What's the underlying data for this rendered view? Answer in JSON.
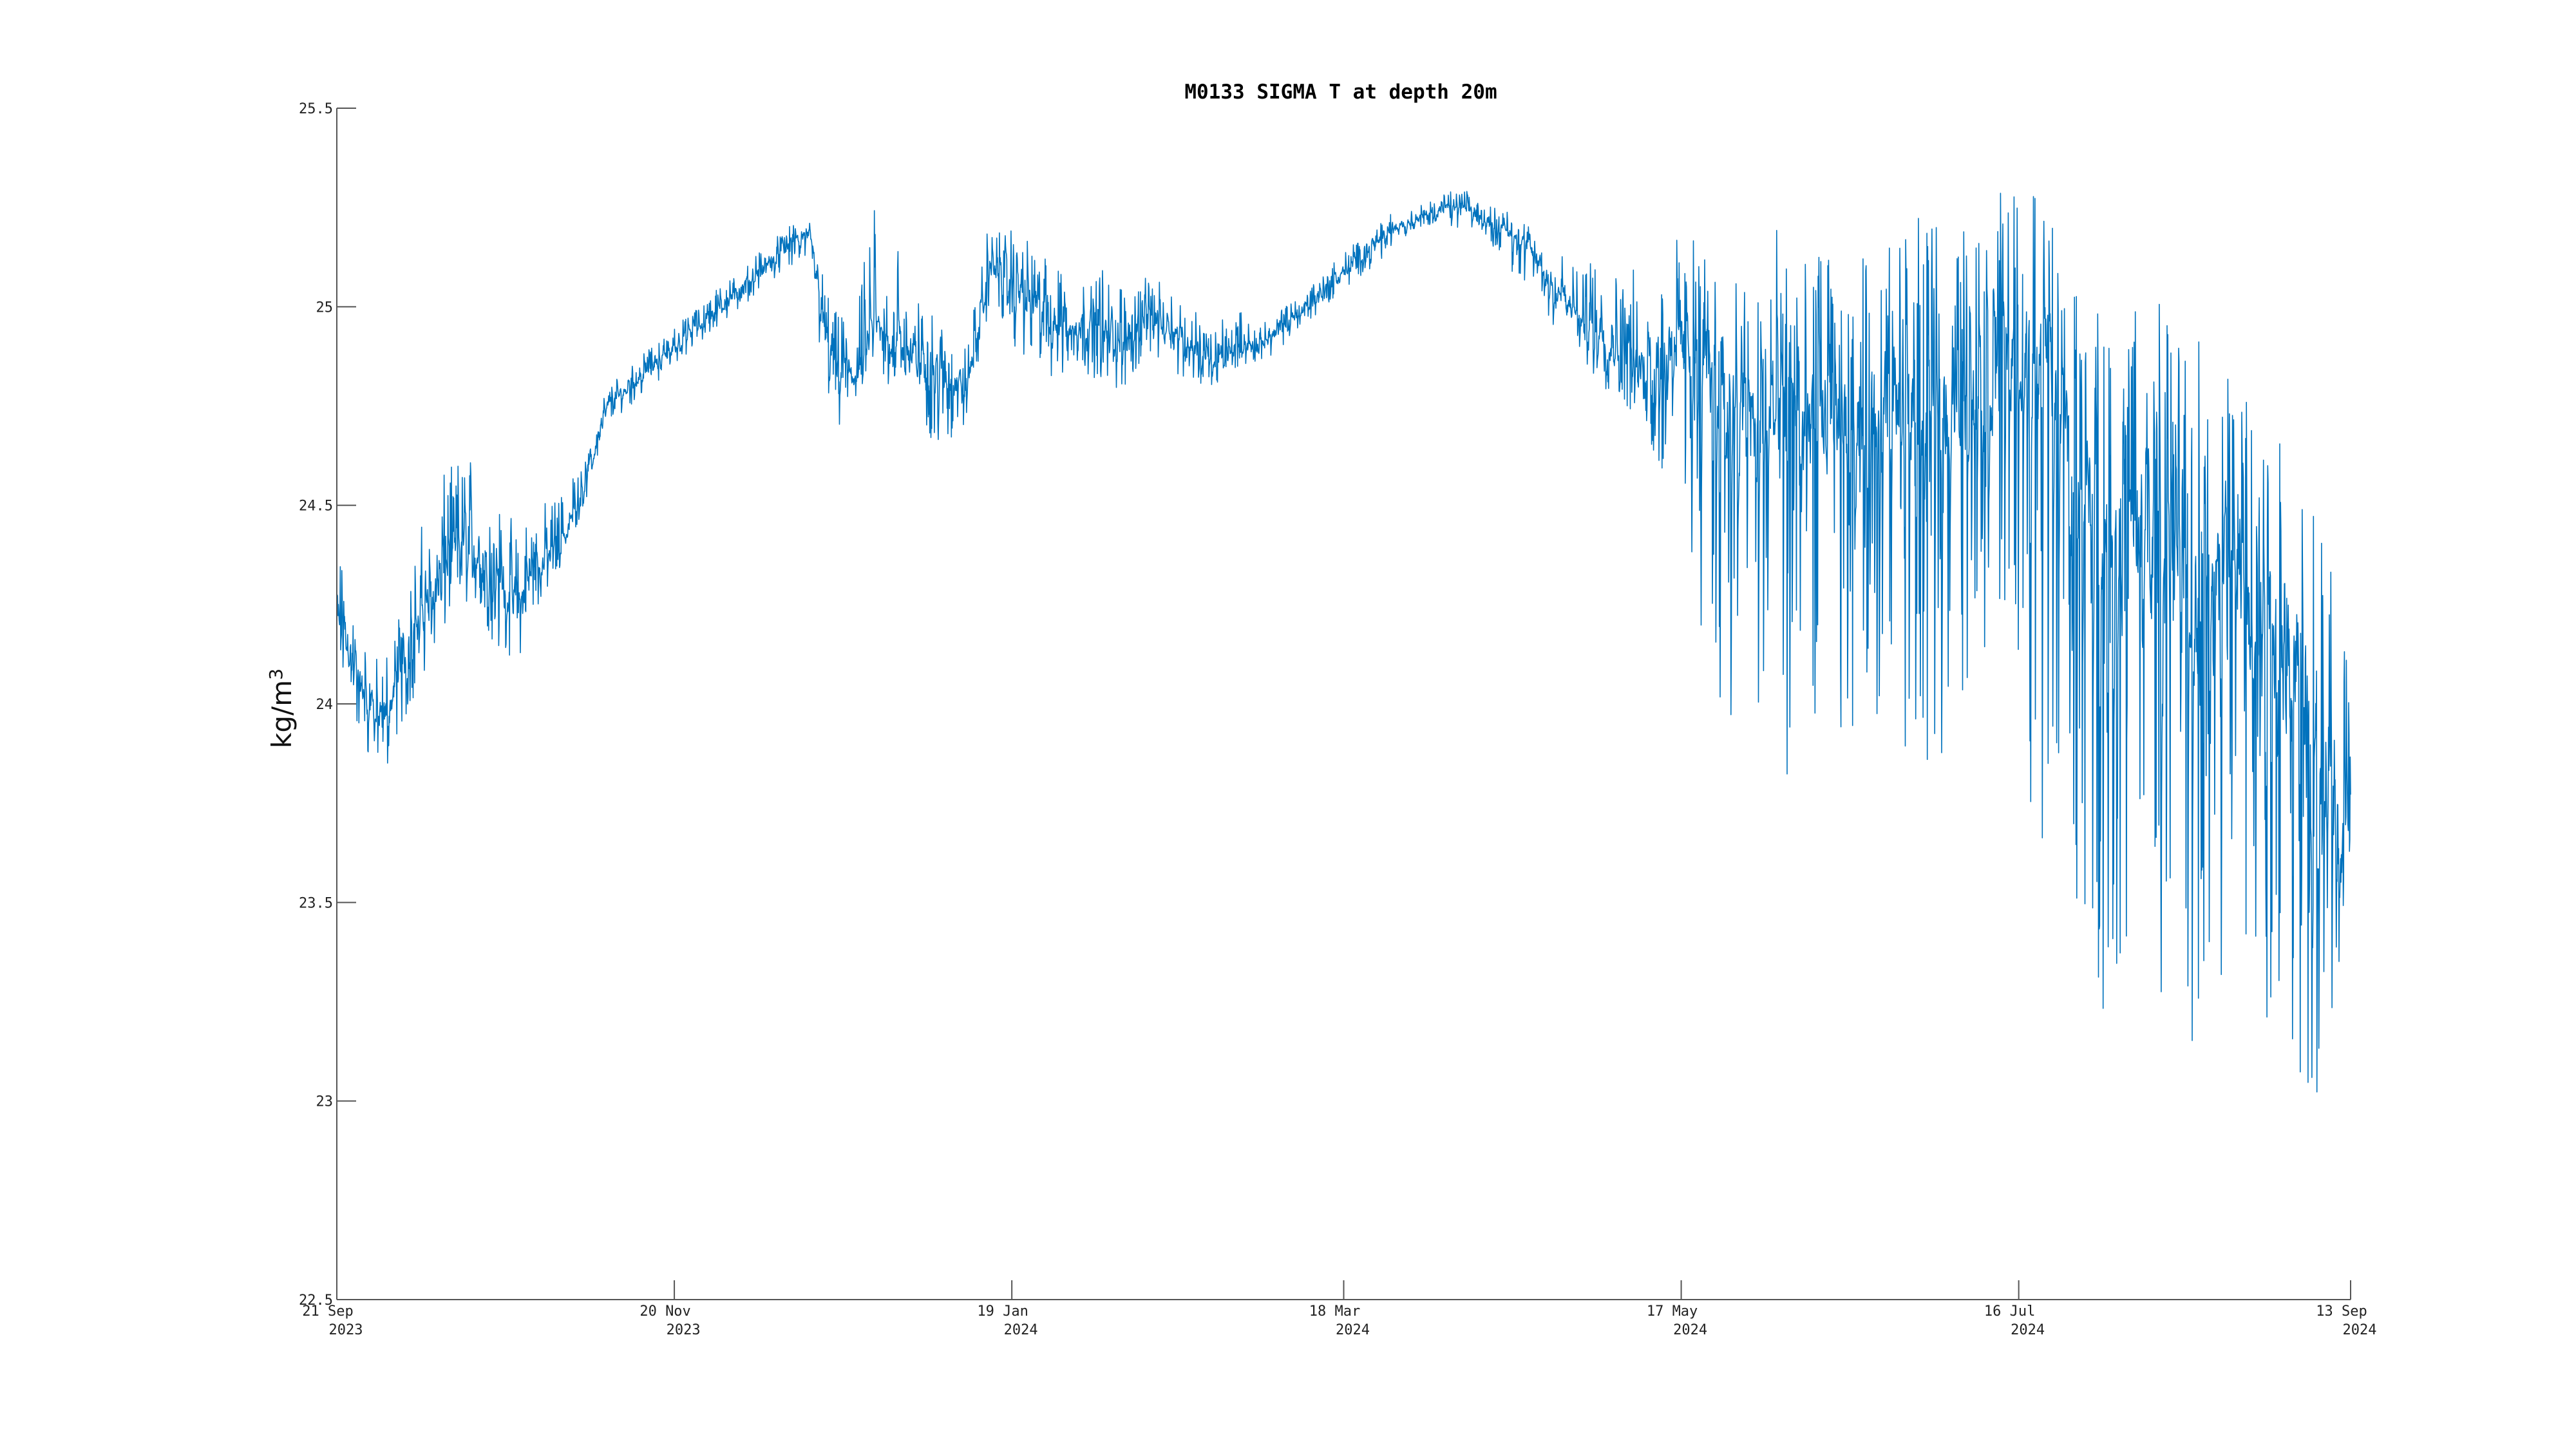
{
  "chart_data": {
    "type": "line",
    "title": "M0133 SIGMA T at depth 20m",
    "xlabel": "",
    "ylabel": "kg/m",
    "ylabel_sup": "3",
    "ylim": [
      22.5,
      25.5
    ],
    "xlim": [
      "2023-09-21",
      "2024-09-13"
    ],
    "grid": false,
    "color": "#0072bd",
    "yticks": [
      {
        "value": 22.5,
        "label": "22.5"
      },
      {
        "value": 23,
        "label": "23"
      },
      {
        "value": 23.5,
        "label": "23.5"
      },
      {
        "value": 24,
        "label": "24"
      },
      {
        "value": 24.5,
        "label": "24.5"
      },
      {
        "value": 25,
        "label": "25"
      },
      {
        "value": 25.5,
        "label": "25.5"
      }
    ],
    "xticks": [
      {
        "date": "2023-09-21",
        "line1": "21 Sep",
        "line2": "2023"
      },
      {
        "date": "2023-11-20",
        "line1": "20 Nov",
        "line2": "2023"
      },
      {
        "date": "2024-01-19",
        "line1": "19 Jan",
        "line2": "2024"
      },
      {
        "date": "2024-03-18",
        "line1": "18 Mar",
        "line2": "2024"
      },
      {
        "date": "2024-05-17",
        "line1": "17 May",
        "line2": "2024"
      },
      {
        "date": "2024-07-16",
        "line1": "16 Jul",
        "line2": "2024"
      },
      {
        "date": "2024-09-13",
        "line1": "13 Sep",
        "line2": "2024"
      }
    ],
    "series": [
      {
        "name": "",
        "x": [
          "2023-09-21",
          "2023-09-25",
          "2023-09-29",
          "2023-10-03",
          "2023-10-07",
          "2023-10-11",
          "2023-10-15",
          "2023-10-19",
          "2023-10-23",
          "2023-10-27",
          "2023-10-31",
          "2023-11-04",
          "2023-11-08",
          "2023-11-12",
          "2023-11-16",
          "2023-11-20",
          "2023-11-24",
          "2023-11-28",
          "2023-12-02",
          "2023-12-06",
          "2023-12-10",
          "2023-12-14",
          "2023-12-18",
          "2023-12-22",
          "2023-12-26",
          "2023-12-30",
          "2024-01-03",
          "2024-01-07",
          "2024-01-11",
          "2024-01-15",
          "2024-01-19",
          "2024-01-23",
          "2024-01-27",
          "2024-01-31",
          "2024-02-04",
          "2024-02-08",
          "2024-02-12",
          "2024-02-16",
          "2024-02-20",
          "2024-02-24",
          "2024-02-28",
          "2024-03-03",
          "2024-03-07",
          "2024-03-11",
          "2024-03-15",
          "2024-03-19",
          "2024-03-23",
          "2024-03-27",
          "2024-03-31",
          "2024-04-04",
          "2024-04-08",
          "2024-04-12",
          "2024-04-16",
          "2024-04-20",
          "2024-04-24",
          "2024-04-28",
          "2024-05-02",
          "2024-05-06",
          "2024-05-10",
          "2024-05-14",
          "2024-05-18",
          "2024-05-22",
          "2024-05-26",
          "2024-05-30",
          "2024-06-03",
          "2024-06-07",
          "2024-06-11",
          "2024-06-15",
          "2024-06-19",
          "2024-06-23",
          "2024-06-27",
          "2024-07-01",
          "2024-07-05",
          "2024-07-09",
          "2024-07-13",
          "2024-07-17",
          "2024-07-21",
          "2024-07-25",
          "2024-07-29",
          "2024-08-02",
          "2024-08-06",
          "2024-08-10",
          "2024-08-14",
          "2024-08-18",
          "2024-08-22",
          "2024-08-26",
          "2024-08-30",
          "2024-09-03",
          "2024-09-07",
          "2024-09-11",
          "2024-09-13"
        ],
        "mean": [
          24.25,
          24.05,
          23.95,
          24.1,
          24.25,
          24.35,
          24.4,
          24.3,
          24.25,
          24.35,
          24.4,
          24.55,
          24.75,
          24.8,
          24.85,
          24.9,
          24.95,
          25.0,
          25.05,
          25.1,
          25.15,
          25.18,
          24.85,
          24.82,
          24.95,
          24.9,
          24.85,
          24.82,
          24.8,
          25.1,
          25.05,
          25.0,
          24.95,
          24.95,
          24.95,
          24.9,
          24.98,
          24.95,
          24.9,
          24.85,
          24.9,
          24.9,
          24.95,
          25.0,
          25.05,
          25.1,
          25.15,
          25.2,
          25.22,
          25.24,
          25.25,
          25.22,
          25.2,
          25.15,
          25.05,
          24.98,
          24.95,
          24.88,
          24.85,
          24.9,
          24.9,
          24.8,
          24.75,
          24.7,
          24.75,
          24.7,
          24.7,
          24.65,
          24.75,
          24.7,
          24.75,
          24.7,
          24.75,
          24.8,
          24.85,
          24.9,
          24.9,
          24.6,
          24.5,
          24.4,
          24.4,
          24.35,
          24.3,
          24.3,
          24.3,
          24.25,
          24.2,
          24.05,
          23.8,
          23.6,
          23.7
        ],
        "low": [
          24.1,
          23.9,
          23.8,
          23.95,
          24.1,
          24.2,
          24.25,
          24.15,
          24.1,
          24.25,
          24.35,
          24.5,
          24.7,
          24.75,
          24.8,
          24.85,
          24.9,
          24.95,
          25.0,
          25.05,
          25.1,
          25.1,
          24.65,
          24.75,
          24.85,
          24.75,
          24.7,
          24.62,
          24.7,
          25.0,
          24.9,
          24.85,
          24.8,
          24.85,
          24.8,
          24.78,
          24.88,
          24.85,
          24.8,
          24.8,
          24.85,
          24.85,
          24.9,
          24.95,
          25.0,
          25.05,
          25.1,
          25.15,
          25.2,
          25.2,
          25.2,
          25.18,
          25.1,
          25.05,
          24.95,
          24.9,
          24.8,
          24.75,
          24.7,
          24.5,
          24.3,
          24.1,
          23.9,
          23.8,
          23.75,
          23.85,
          23.95,
          23.9,
          24.0,
          23.85,
          23.9,
          23.8,
          24.0,
          24.1,
          24.2,
          23.7,
          23.6,
          23.3,
          23.2,
          23.2,
          23.1,
          23.2,
          23.1,
          23.15,
          23.1,
          23.05,
          23.0,
          23.0,
          23.0,
          23.3,
          23.6
        ],
        "high": [
          24.4,
          24.2,
          24.1,
          24.3,
          24.5,
          24.6,
          24.65,
          24.55,
          24.45,
          24.5,
          24.55,
          24.6,
          24.8,
          24.85,
          24.9,
          24.95,
          25.0,
          25.05,
          25.1,
          25.15,
          25.2,
          25.22,
          25.0,
          24.95,
          25.35,
          25.15,
          25.0,
          24.95,
          24.9,
          25.22,
          25.2,
          25.15,
          25.1,
          25.05,
          25.1,
          25.05,
          25.08,
          25.05,
          25.0,
          24.95,
          25.0,
          24.95,
          25.0,
          25.05,
          25.1,
          25.15,
          25.2,
          25.25,
          25.25,
          25.28,
          25.3,
          25.26,
          25.24,
          25.2,
          25.15,
          25.1,
          25.15,
          25.1,
          25.1,
          25.15,
          25.2,
          25.1,
          25.15,
          25.05,
          25.2,
          25.1,
          25.15,
          25.05,
          25.15,
          25.2,
          25.25,
          25.2,
          25.2,
          25.25,
          25.3,
          25.3,
          25.25,
          25.1,
          25.0,
          25.0,
          25.05,
          25.05,
          24.95,
          25.0,
          24.9,
          24.85,
          24.8,
          24.7,
          24.5,
          24.3,
          24.0
        ]
      }
    ]
  }
}
